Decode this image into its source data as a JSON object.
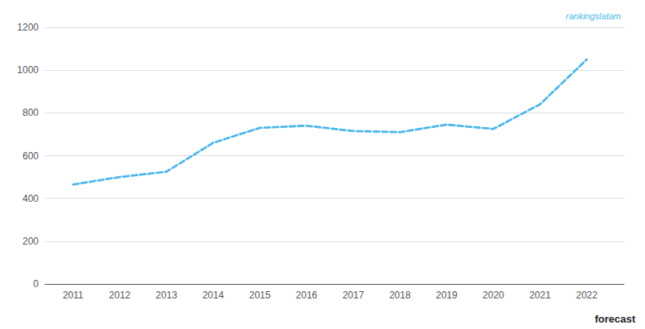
{
  "chart_data": {
    "type": "line",
    "x": [
      2011,
      2012,
      2013,
      2014,
      2015,
      2016,
      2017,
      2018,
      2019,
      2020,
      2021,
      2022
    ],
    "values": [
      465,
      500,
      525,
      660,
      730,
      740,
      715,
      710,
      745,
      725,
      840,
      1050
    ],
    "color": "#4db8e8",
    "line_style": "dashed",
    "xlim": [
      2010.4,
      2022.8
    ],
    "xticks": [
      2011,
      2012,
      2013,
      2014,
      2015,
      2016,
      2017,
      2018,
      2019,
      2020,
      2021,
      2022
    ],
    "ylim": [
      0,
      1200
    ],
    "yticks": [
      0,
      200,
      400,
      600,
      800,
      1000,
      1200
    ],
    "grid": "y",
    "annotations": [
      {
        "text": "rankingslatam",
        "color": "#4db8e8"
      },
      {
        "text": "forecast"
      }
    ]
  }
}
